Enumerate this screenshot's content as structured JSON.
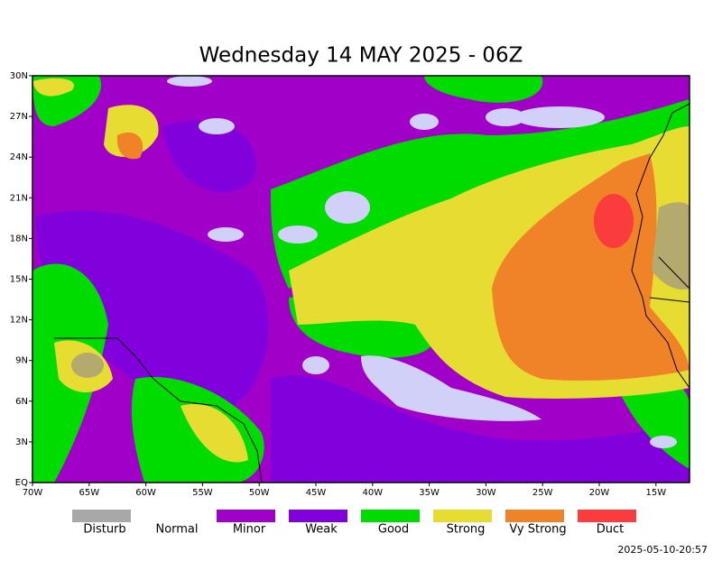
{
  "title": "Wednesday 14 MAY 2025 - 06Z",
  "lat_labels": [
    "30N",
    "27N",
    "24N",
    "21N",
    "18N",
    "15N",
    "12N",
    "9N",
    "6N",
    "3N",
    "EQ"
  ],
  "lon_labels": [
    "70W",
    "65W",
    "60W",
    "55W",
    "50W",
    "45W",
    "40W",
    "35W",
    "30W",
    "25W",
    "20W",
    "15W"
  ],
  "legend": [
    {
      "label": "Disturb",
      "color": "#a8a8a8"
    },
    {
      "label": "Normal"
    },
    {
      "label": "Minor",
      "color": "#a000c8"
    },
    {
      "label": "Weak",
      "color": "#8200dc"
    },
    {
      "label": "Good",
      "color": "#00dc00"
    },
    {
      "label": "Strong",
      "color": "#e6dc32"
    },
    {
      "label": "Vy Strong",
      "color": "#f08228"
    },
    {
      "label": "Duct",
      "color": "#fa3c3c"
    }
  ],
  "timestamp": "2025-05-10-20:57"
}
